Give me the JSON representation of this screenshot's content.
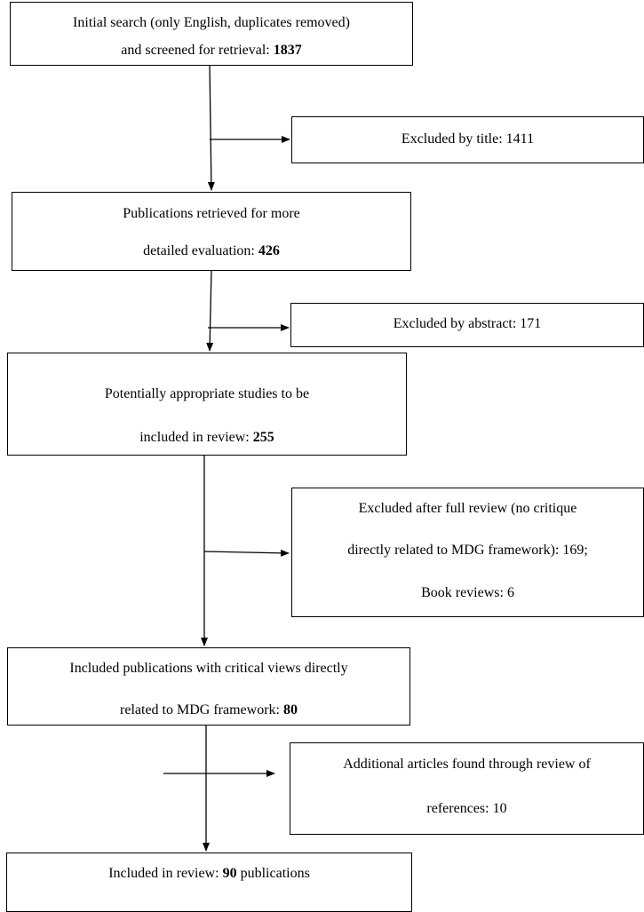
{
  "boxes": {
    "initial": {
      "line1": "Initial search (only English, duplicates removed)",
      "line2_pre": "and screened for retrieval: ",
      "line2_bold": "1837"
    },
    "excluded_title": {
      "text": "Excluded by title: 1411"
    },
    "retrieved": {
      "line1": "Publications retrieved for more",
      "line2_pre": "detailed evaluation: ",
      "line2_bold": "426"
    },
    "excluded_abstract": {
      "text": "Excluded by abstract: 171"
    },
    "potential": {
      "line1": "Potentially appropriate studies to be",
      "line2_pre": "included in review: ",
      "line2_bold": "255"
    },
    "excluded_full": {
      "line1": "Excluded after full review (no critique",
      "line2": "directly related to MDG framework): 169;",
      "line3": "Book reviews: 6"
    },
    "included_critical": {
      "line1": "Included publications with critical views directly",
      "line2_pre": "related to MDG framework: ",
      "line2_bold": "80"
    },
    "additional": {
      "line1": "Additional articles found through review of",
      "line2": "references: 10"
    },
    "final": {
      "pre": "Included in review:  ",
      "bold": "90",
      "post": " publications"
    }
  }
}
